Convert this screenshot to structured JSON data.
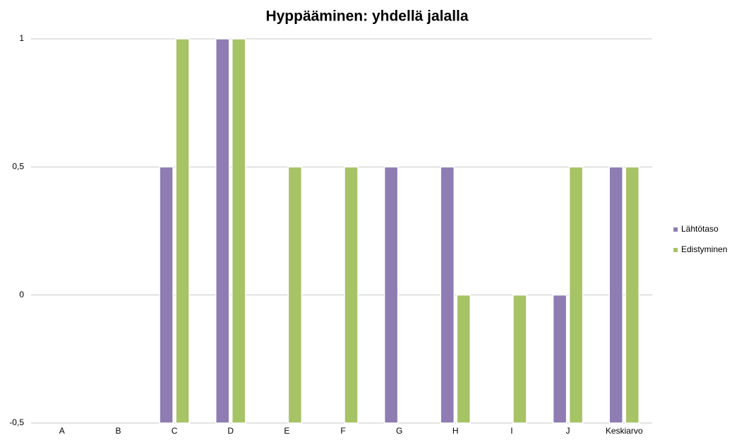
{
  "chart_data": {
    "type": "bar",
    "title": "Hyppääminen: yhdellä jalalla",
    "categories": [
      "A",
      "B",
      "C",
      "D",
      "E",
      "F",
      "G",
      "H",
      "I",
      "J",
      "Keskiarvo"
    ],
    "series": [
      {
        "name": "Lähtötaso",
        "color": "#8e7cb3",
        "values": [
          null,
          null,
          0.5,
          1,
          null,
          null,
          0.5,
          0.5,
          null,
          0,
          0.5
        ]
      },
      {
        "name": "Edistyminen",
        "color": "#a6c366",
        "values": [
          null,
          null,
          1,
          1,
          0.5,
          0.5,
          null,
          0,
          0,
          0.5,
          0.5
        ]
      }
    ],
    "ylim": [
      -0.5,
      1
    ],
    "yticks": [
      {
        "value": -0.5,
        "label": "-0,5"
      },
      0,
      {
        "value": 0.5,
        "label": "0,5"
      },
      1
    ],
    "grid": true,
    "legend": "right"
  }
}
